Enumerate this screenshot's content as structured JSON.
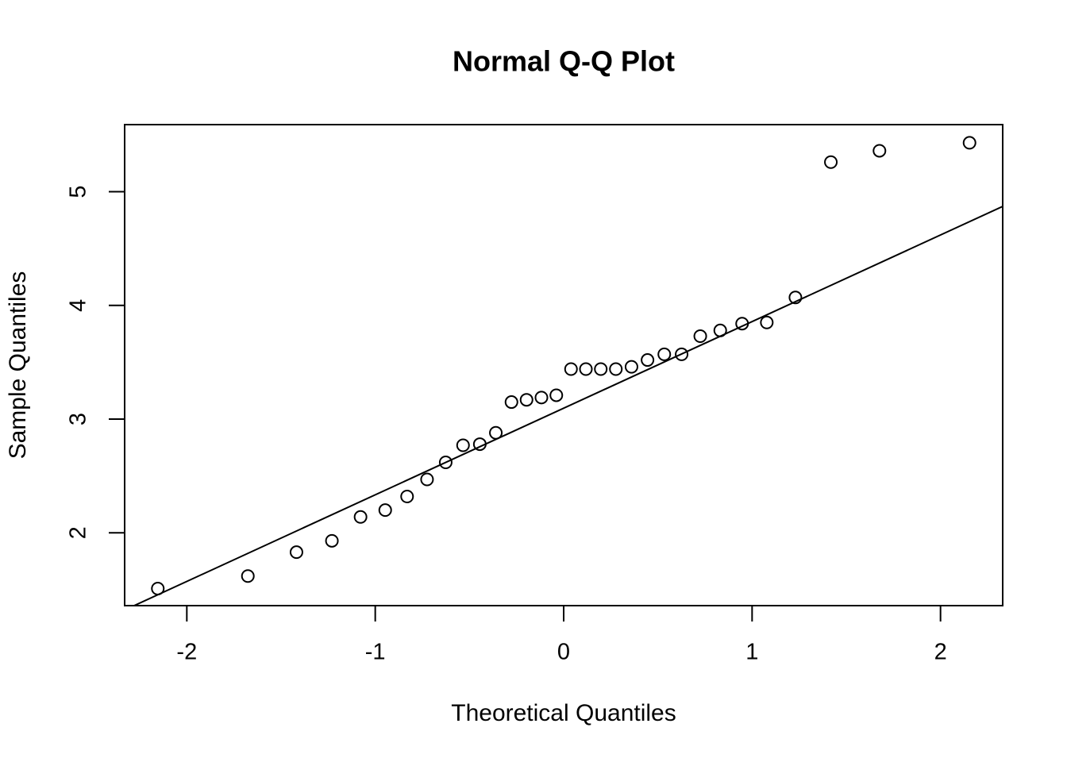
{
  "chart_data": {
    "type": "scatter",
    "title": "Normal Q-Q Plot",
    "x_label": "Theoretical Quantiles",
    "y_label": "Sample Quantiles",
    "x": [
      -2.154,
      -1.676,
      -1.418,
      -1.23,
      -1.078,
      -0.947,
      -0.831,
      -0.725,
      -0.626,
      -0.534,
      -0.445,
      -0.36,
      -0.277,
      -0.197,
      -0.118,
      -0.039,
      0.039,
      0.118,
      0.197,
      0.277,
      0.36,
      0.445,
      0.534,
      0.626,
      0.725,
      0.831,
      0.947,
      1.078,
      1.23,
      1.418,
      1.676,
      2.154
    ],
    "values": [
      1.51,
      1.62,
      1.83,
      1.93,
      2.14,
      2.2,
      2.32,
      2.47,
      2.62,
      2.77,
      2.78,
      2.88,
      3.15,
      3.17,
      3.19,
      3.21,
      3.44,
      3.44,
      3.44,
      3.44,
      3.46,
      3.52,
      3.57,
      3.57,
      3.73,
      3.78,
      3.84,
      3.85,
      4.07,
      5.26,
      5.36,
      5.43
    ],
    "color": "#000000",
    "xlim": [
      -2.33,
      2.33
    ],
    "ylim": [
      1.36,
      5.59
    ],
    "xticks": [
      -2,
      -1,
      0,
      1,
      2
    ],
    "yticks": [
      2,
      3,
      4,
      5
    ],
    "reference_line": true
  }
}
